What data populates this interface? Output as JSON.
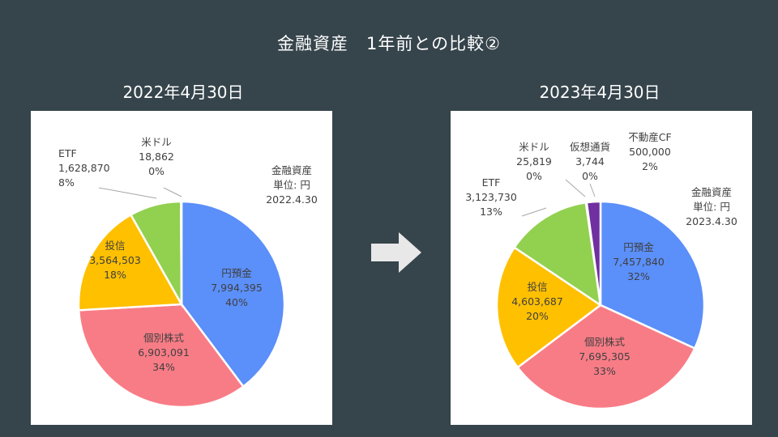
{
  "slide": {
    "title": "金融資産　1年前との比較②"
  },
  "icons": {
    "arrow": "right-arrow-icon"
  },
  "colors": {
    "background": "#36444b",
    "円預金": "#5b8ff9",
    "個別株式": "#f87c86",
    "投信": "#ffc000",
    "ETF": "#92d050",
    "米ドル": "#e6e6e6",
    "仮想通貨": "#4472c4",
    "不動産CF": "#7030a0"
  },
  "chart_data": [
    {
      "type": "pie",
      "heading": "2022年4月30日",
      "note": [
        "金融資産",
        "単位: 円",
        "2022.4.30"
      ],
      "slices": [
        {
          "label": "円預金",
          "value": 7994395,
          "value_text": "7,994,395",
          "percent": "40%",
          "color": "#5b8ff9"
        },
        {
          "label": "個別株式",
          "value": 6903091,
          "value_text": "6,903,091",
          "percent": "34%",
          "color": "#f87c86"
        },
        {
          "label": "投信",
          "value": 3564503,
          "value_text": "3,564,503",
          "percent": "18%",
          "color": "#ffc000"
        },
        {
          "label": "ETF",
          "value": 1628870,
          "value_text": "1,628,870",
          "percent": "8%",
          "color": "#92d050"
        },
        {
          "label": "米ドル",
          "value": 18862,
          "value_text": "18,862",
          "percent": "0%",
          "color": "#e6e6e6"
        }
      ]
    },
    {
      "type": "pie",
      "heading": "2023年4月30日",
      "note": [
        "金融資産",
        "単位: 円",
        "2023.4.30"
      ],
      "slices": [
        {
          "label": "円預金",
          "value": 7457840,
          "value_text": "7,457,840",
          "percent": "32%",
          "color": "#5b8ff9"
        },
        {
          "label": "個別株式",
          "value": 7695305,
          "value_text": "7,695,305",
          "percent": "33%",
          "color": "#f87c86"
        },
        {
          "label": "投信",
          "value": 4603687,
          "value_text": "4,603,687",
          "percent": "20%",
          "color": "#ffc000"
        },
        {
          "label": "ETF",
          "value": 3123730,
          "value_text": "3,123,730",
          "percent": "13%",
          "color": "#92d050"
        },
        {
          "label": "米ドル",
          "value": 25819,
          "value_text": "25,819",
          "percent": "0%",
          "color": "#e6e6e6"
        },
        {
          "label": "仮想通貨",
          "value": 3744,
          "value_text": "3,744",
          "percent": "0%",
          "color": "#4472c4"
        },
        {
          "label": "不動産CF",
          "value": 500000,
          "value_text": "500,000",
          "percent": "2%",
          "color": "#7030a0"
        }
      ]
    }
  ]
}
